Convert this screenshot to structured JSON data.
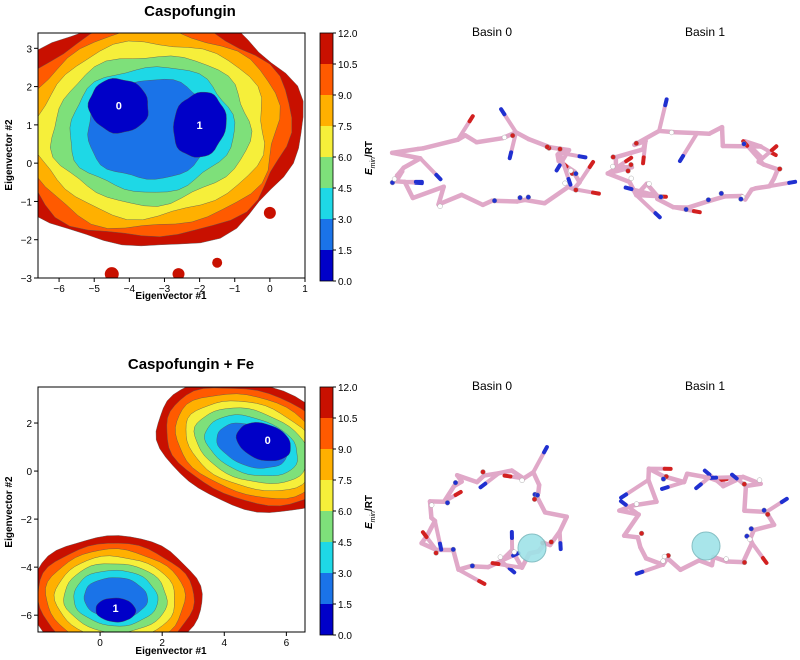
{
  "chart_data": [
    {
      "type": "contour",
      "title": "Caspofungin",
      "xlabel": "Eigenvector #1",
      "ylabel": "Eigenvector #2",
      "xlim": [
        -6.6,
        1.0
      ],
      "ylim": [
        -3.0,
        3.4
      ],
      "xticks": [
        -6,
        -5,
        -4,
        -3,
        -2,
        -1,
        0,
        1
      ],
      "yticks": [
        -3,
        -2,
        -1,
        0,
        1,
        2,
        3
      ],
      "colorbar": {
        "label": "E_min/RT",
        "label_main": "E",
        "label_sub": "min",
        "label_suffix": "/RT",
        "levels": [
          "0.0",
          "1.5",
          "3.0",
          "4.5",
          "6.0",
          "7.5",
          "9.0",
          "10.5",
          "12.0"
        ],
        "colors": [
          "#0000c8",
          "#1a73e8",
          "#1ed8e6",
          "#7ee07a",
          "#f6ef3a",
          "#ffb000",
          "#ff5a00",
          "#c81000",
          "#ffffff"
        ]
      },
      "basins": [
        {
          "label": "0",
          "x": -4.3,
          "y": 1.5
        },
        {
          "label": "1",
          "x": -2.0,
          "y": 1.0
        }
      ],
      "structures": [
        {
          "title": "Basin 0"
        },
        {
          "title": "Basin 1"
        }
      ]
    },
    {
      "type": "contour",
      "title": "Caspofungin + Fe",
      "xlabel": "Eigenvector #1",
      "ylabel": "Eigenvector #2",
      "xlim": [
        -2.0,
        6.6
      ],
      "ylim": [
        -6.7,
        3.5
      ],
      "xticks": [
        0,
        2,
        4,
        6
      ],
      "yticks": [
        -6,
        -4,
        -2,
        0,
        2
      ],
      "colorbar": {
        "label": "E_min/RT",
        "label_main": "E",
        "label_sub": "min",
        "label_suffix": "/RT",
        "levels": [
          "0.0",
          "1.5",
          "3.0",
          "4.5",
          "6.0",
          "7.5",
          "9.0",
          "10.5",
          "12.0"
        ],
        "colors": [
          "#0000c8",
          "#1a73e8",
          "#1ed8e6",
          "#7ee07a",
          "#f6ef3a",
          "#ffb000",
          "#ff5a00",
          "#c81000",
          "#ffffff"
        ]
      },
      "basins": [
        {
          "label": "0",
          "x": 5.4,
          "y": 1.3
        },
        {
          "label": "1",
          "x": 0.5,
          "y": -5.7
        }
      ],
      "structures": [
        {
          "title": "Basin 0"
        },
        {
          "title": "Basin 1"
        }
      ]
    }
  ]
}
